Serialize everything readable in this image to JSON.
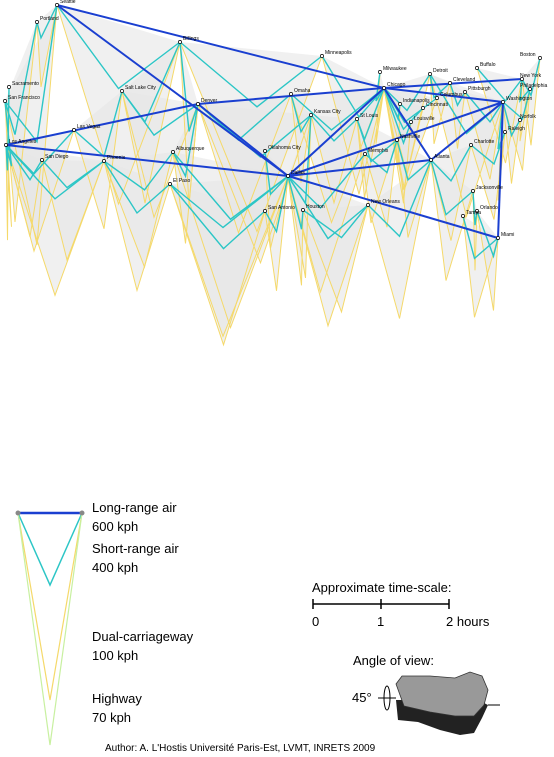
{
  "cities": [
    "Seattle",
    "Portland",
    "Billings",
    "Minneapolis",
    "Milwaukee",
    "Detroit",
    "Buffalo",
    "Boston",
    "New York",
    "Cleveland",
    "Philadelphia",
    "Pittsburgh",
    "Sacramento",
    "San Francisco",
    "Salt Lake City",
    "Omaha",
    "Chicago",
    "Columbus",
    "Washington",
    "Indianapolis",
    "Cincinnati",
    "Denver",
    "Kansas City",
    "St Louis",
    "Norfolk",
    "Louisville",
    "Las Vegas",
    "Raleigh",
    "Los Angeles",
    "Nashville",
    "Charlotte",
    "Albuquerque",
    "Oklahoma City",
    "Memphis",
    "Atlanta",
    "San Diego",
    "Phoenix",
    "Dallas",
    "El Paso",
    "Jacksonville",
    "New Orleans",
    "Orlando",
    "Tampa",
    "San Antonio",
    "Houston",
    "Miami"
  ],
  "legend": [
    {
      "label": "Long-range air",
      "speed": "600 kph"
    },
    {
      "label": "Short-range air",
      "speed": "400 kph"
    },
    {
      "label": "Dual-carriageway",
      "speed": "100 kph"
    },
    {
      "label": "Highway",
      "speed": "70 kph"
    }
  ],
  "scale": {
    "title": "Approximate time-scale:",
    "ticks": [
      "0",
      "1",
      "2 hours"
    ]
  },
  "angle": {
    "title": "Angle of view:",
    "label": "45°"
  },
  "author": "Author: A. L'Hostis Université Paris-Est, LVMT, INRETS 2009"
}
